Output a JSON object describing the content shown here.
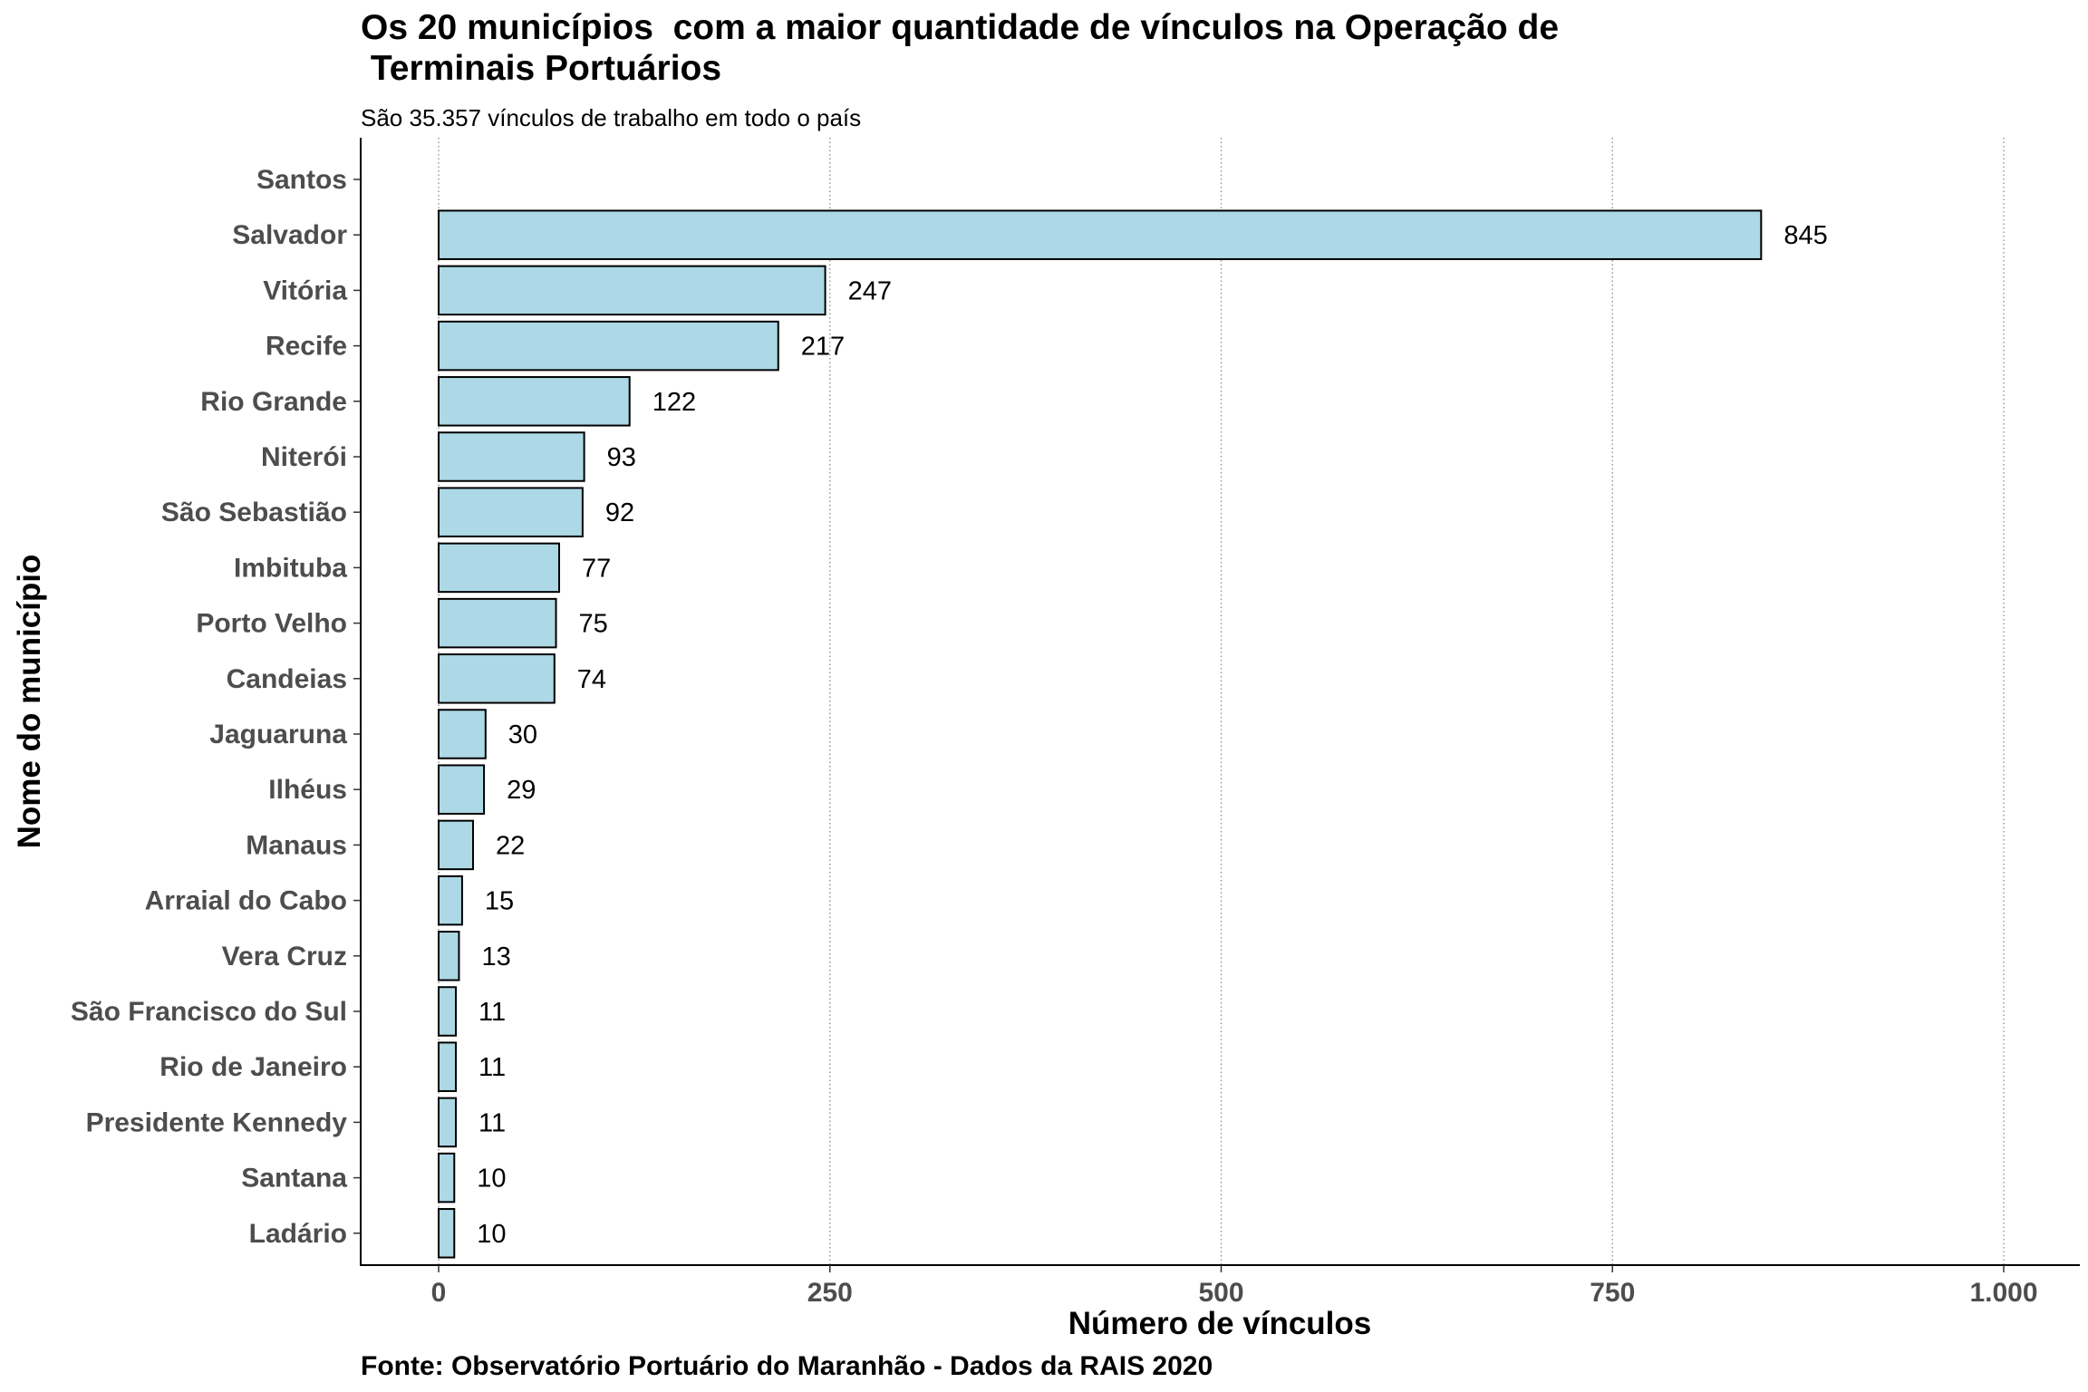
{
  "chart_data": {
    "type": "bar",
    "orientation": "horizontal",
    "title": "Os 20 municípios  com a maior quantidade de vínculos na Operação de\n Terminais Portuários",
    "subtitle": "São 35.357 vínculos de trabalho em todo o país",
    "caption": "Fonte: Observatório Portuário do Maranhão - Dados da RAIS 2020",
    "xlabel": "Número de vínculos",
    "ylabel": "Nome do município",
    "xlim": [
      0,
      1000
    ],
    "x_ticks": [
      0,
      250,
      500,
      750,
      1000
    ],
    "x_tick_labels": [
      "0",
      "250",
      "500",
      "750",
      "1.000"
    ],
    "grid": "vertical dotted at x ticks",
    "bar_fill": "#add8e6",
    "bar_stroke": "#000000",
    "categories": [
      "Santos",
      "Salvador",
      "Vitória",
      "Recife",
      "Rio Grande",
      "Niterói",
      "São Sebastião",
      "Imbituba",
      "Porto Velho",
      "Candeias",
      "Jaguaruna",
      "Ilhéus",
      "Manaus",
      "Arraial do Cabo",
      "Vera Cruz",
      "São Francisco do Sul",
      "Rio de Janeiro",
      "Presidente Kennedy",
      "Santana",
      "Ladário"
    ],
    "values": [
      null,
      845,
      247,
      217,
      122,
      93,
      92,
      77,
      75,
      74,
      30,
      29,
      22,
      15,
      13,
      11,
      11,
      11,
      10,
      10
    ],
    "value_labels": [
      "",
      "845",
      "247",
      "217",
      "122",
      "93",
      "92",
      "77",
      "75",
      "74",
      "30",
      "29",
      "22",
      "15",
      "13",
      "11",
      "11",
      "11",
      "10",
      "10"
    ]
  }
}
